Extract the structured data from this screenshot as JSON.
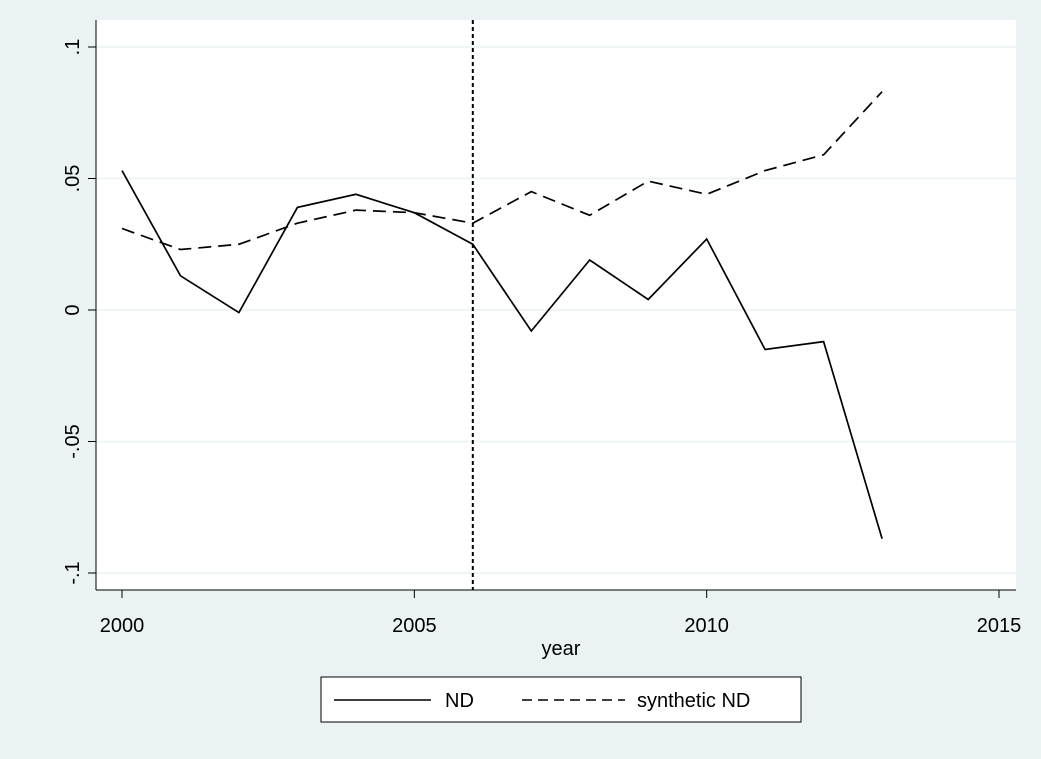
{
  "chart_data": {
    "type": "line",
    "xlabel": "year",
    "ylabel": "",
    "xlim": [
      2000,
      2015
    ],
    "ylim": [
      -0.1,
      0.1
    ],
    "x_ticks": [
      2000,
      2005,
      2010,
      2015
    ],
    "x_tick_labels": [
      "2000",
      "2005",
      "2010",
      "2015"
    ],
    "y_ticks": [
      -0.1,
      -0.05,
      0,
      0.05,
      0.1
    ],
    "y_tick_labels": [
      "-.1",
      "-.05",
      "0",
      ".05",
      ".1"
    ],
    "grid": true,
    "vline": {
      "x": 2006,
      "style": "dotted"
    },
    "legend_position": "bottom",
    "x": [
      2000,
      2001,
      2002,
      2003,
      2004,
      2005,
      2006,
      2007,
      2008,
      2009,
      2010,
      2011,
      2012,
      2013
    ],
    "series": [
      {
        "name": "ND",
        "style": "solid",
        "color": "#000000",
        "values": [
          0.053,
          0.013,
          -0.001,
          0.039,
          0.044,
          0.037,
          0.025,
          -0.008,
          0.019,
          0.004,
          0.027,
          -0.015,
          -0.012,
          -0.087
        ]
      },
      {
        "name": "synthetic ND",
        "style": "dashed",
        "color": "#000000",
        "values": [
          0.031,
          0.023,
          0.025,
          0.033,
          0.038,
          0.037,
          0.033,
          0.045,
          0.036,
          0.049,
          0.044,
          0.053,
          0.059,
          0.083
        ]
      }
    ]
  },
  "colors": {
    "background": "#eaf2f3",
    "plot_background": "#ffffff",
    "gridline": "#eaf2f3",
    "ink": "#000000"
  }
}
